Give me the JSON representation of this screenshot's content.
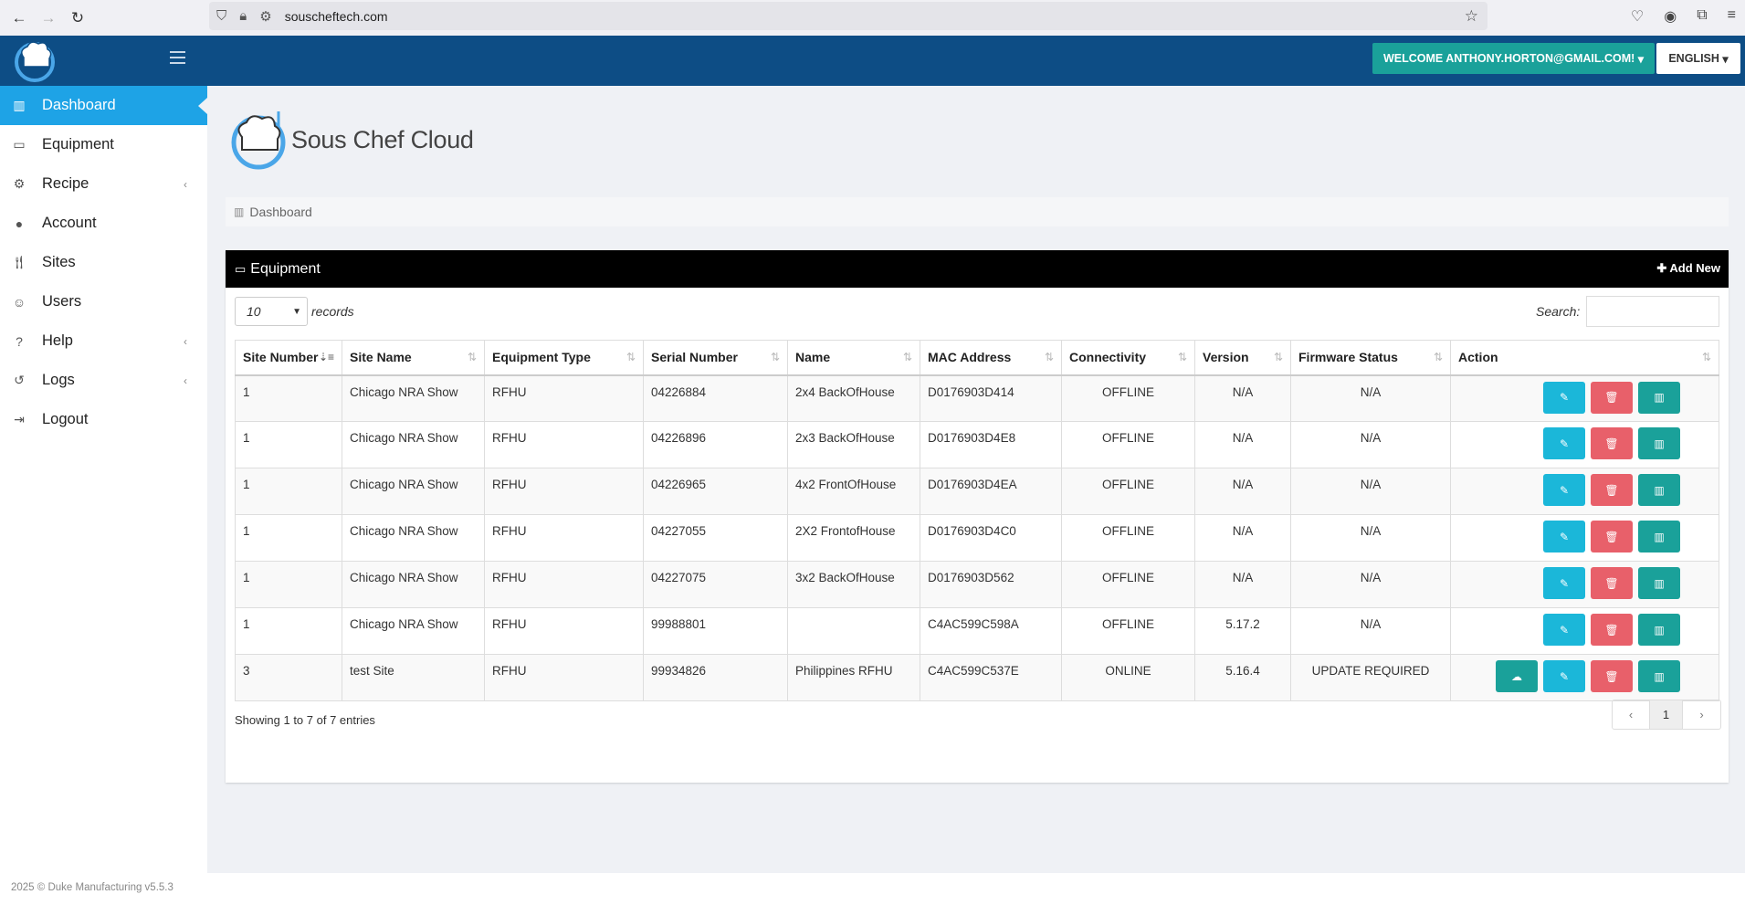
{
  "browser": {
    "url": "souscheftech.com"
  },
  "header": {
    "welcome": "WELCOME ANTHONY.HORTON@GMAIL.COM!",
    "language": "ENGLISH"
  },
  "sidebar": {
    "items": [
      {
        "label": "Dashboard",
        "icon": "bar-chart-icon",
        "active": true
      },
      {
        "label": "Equipment",
        "icon": "monitor-icon"
      },
      {
        "label": "Recipe",
        "icon": "gear-icon",
        "submenu": true
      },
      {
        "label": "Account",
        "icon": "globe-icon"
      },
      {
        "label": "Sites",
        "icon": "cutlery-icon"
      },
      {
        "label": "Users",
        "icon": "user-icon"
      },
      {
        "label": "Help",
        "icon": "question-icon",
        "submenu": true
      },
      {
        "label": "Logs",
        "icon": "history-icon",
        "submenu": true
      },
      {
        "label": "Logout",
        "icon": "sign-out-icon"
      }
    ]
  },
  "main": {
    "brand_name": "Sous Chef Cloud",
    "breadcrumb": "Dashboard",
    "panel": {
      "title": "Equipment",
      "add_new": "Add New",
      "length_value": "10",
      "length_label": "records",
      "search_label": "Search:",
      "search_value": "",
      "columns": [
        "Site Number",
        "Site Name",
        "Equipment Type",
        "Serial Number",
        "Name",
        "MAC Address",
        "Connectivity",
        "Version",
        "Firmware Status",
        "Action"
      ],
      "rows": [
        {
          "site_number": "1",
          "site_name": "Chicago NRA Show",
          "type": "RFHU",
          "serial": "04226884",
          "name": "2x4 BackOfHouse",
          "mac": "D0176903D414",
          "connectivity": "OFFLINE",
          "version": "N/A",
          "firmware": "N/A"
        },
        {
          "site_number": "1",
          "site_name": "Chicago NRA Show",
          "type": "RFHU",
          "serial": "04226896",
          "name": "2x3 BackOfHouse",
          "mac": "D0176903D4E8",
          "connectivity": "OFFLINE",
          "version": "N/A",
          "firmware": "N/A"
        },
        {
          "site_number": "1",
          "site_name": "Chicago NRA Show",
          "type": "RFHU",
          "serial": "04226965",
          "name": "4x2 FrontOfHouse",
          "mac": "D0176903D4EA",
          "connectivity": "OFFLINE",
          "version": "N/A",
          "firmware": "N/A"
        },
        {
          "site_number": "1",
          "site_name": "Chicago NRA Show",
          "type": "RFHU",
          "serial": "04227055",
          "name": "2X2 FrontofHouse",
          "mac": "D0176903D4C0",
          "connectivity": "OFFLINE",
          "version": "N/A",
          "firmware": "N/A"
        },
        {
          "site_number": "1",
          "site_name": "Chicago NRA Show",
          "type": "RFHU",
          "serial": "04227075",
          "name": "3x2 BackOfHouse",
          "mac": "D0176903D562",
          "connectivity": "OFFLINE",
          "version": "N/A",
          "firmware": "N/A"
        },
        {
          "site_number": "1",
          "site_name": "Chicago NRA Show",
          "type": "RFHU",
          "serial": "99988801",
          "name": "",
          "mac": "C4AC599C598A",
          "connectivity": "OFFLINE",
          "version": "5.17.2",
          "firmware": "N/A"
        },
        {
          "site_number": "3",
          "site_name": "test Site",
          "type": "RFHU",
          "serial": "99934826",
          "name": "Philippines RFHU",
          "mac": "C4AC599C537E",
          "connectivity": "ONLINE",
          "version": "5.16.4",
          "firmware": "UPDATE REQUIRED"
        }
      ],
      "showing": "Showing 1 to 7 of 7 entries",
      "pagination": {
        "prev": "‹",
        "current": "1",
        "next": "›"
      }
    }
  },
  "footer": "2025 © Duke Manufacturing v5.5.3",
  "colors": {
    "header": "#0d4d85",
    "active": "#1ea3e6",
    "teal": "#1aa19a",
    "edit": "#1bb7d9",
    "delete": "#e8606a",
    "offline": "#e60000",
    "online": "#009900"
  }
}
